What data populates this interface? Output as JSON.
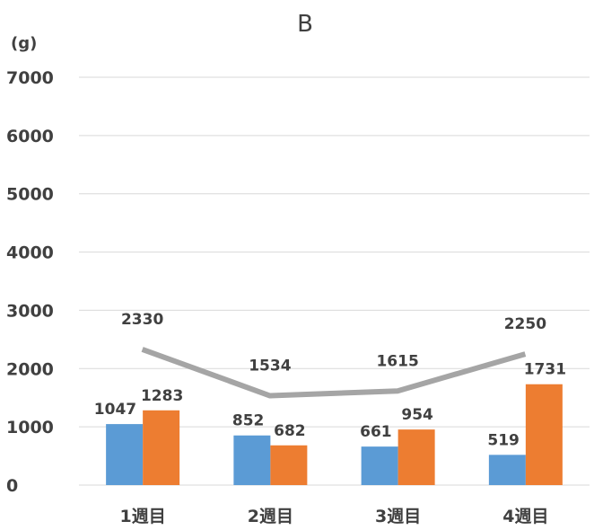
{
  "chart_data": {
    "type": "bar",
    "title": "B",
    "unit_label": "(g)",
    "categories": [
      "1週目",
      "2週目",
      "3週目",
      "4週目"
    ],
    "ylim": [
      0,
      7000
    ],
    "yticks": [
      "0",
      "1000",
      "2000",
      "3000",
      "4000",
      "5000",
      "6000",
      "7000"
    ],
    "grid": true,
    "legend": "none",
    "series": [
      {
        "type": "bar",
        "values": [
          1047,
          852,
          661,
          519
        ],
        "color": "#5B9BD5"
      },
      {
        "type": "bar",
        "values": [
          1283,
          682,
          954,
          1731
        ],
        "color": "#ED7D31"
      },
      {
        "type": "line",
        "values": [
          2330,
          1534,
          1615,
          2250
        ],
        "color": "#A5A5A5"
      }
    ]
  }
}
